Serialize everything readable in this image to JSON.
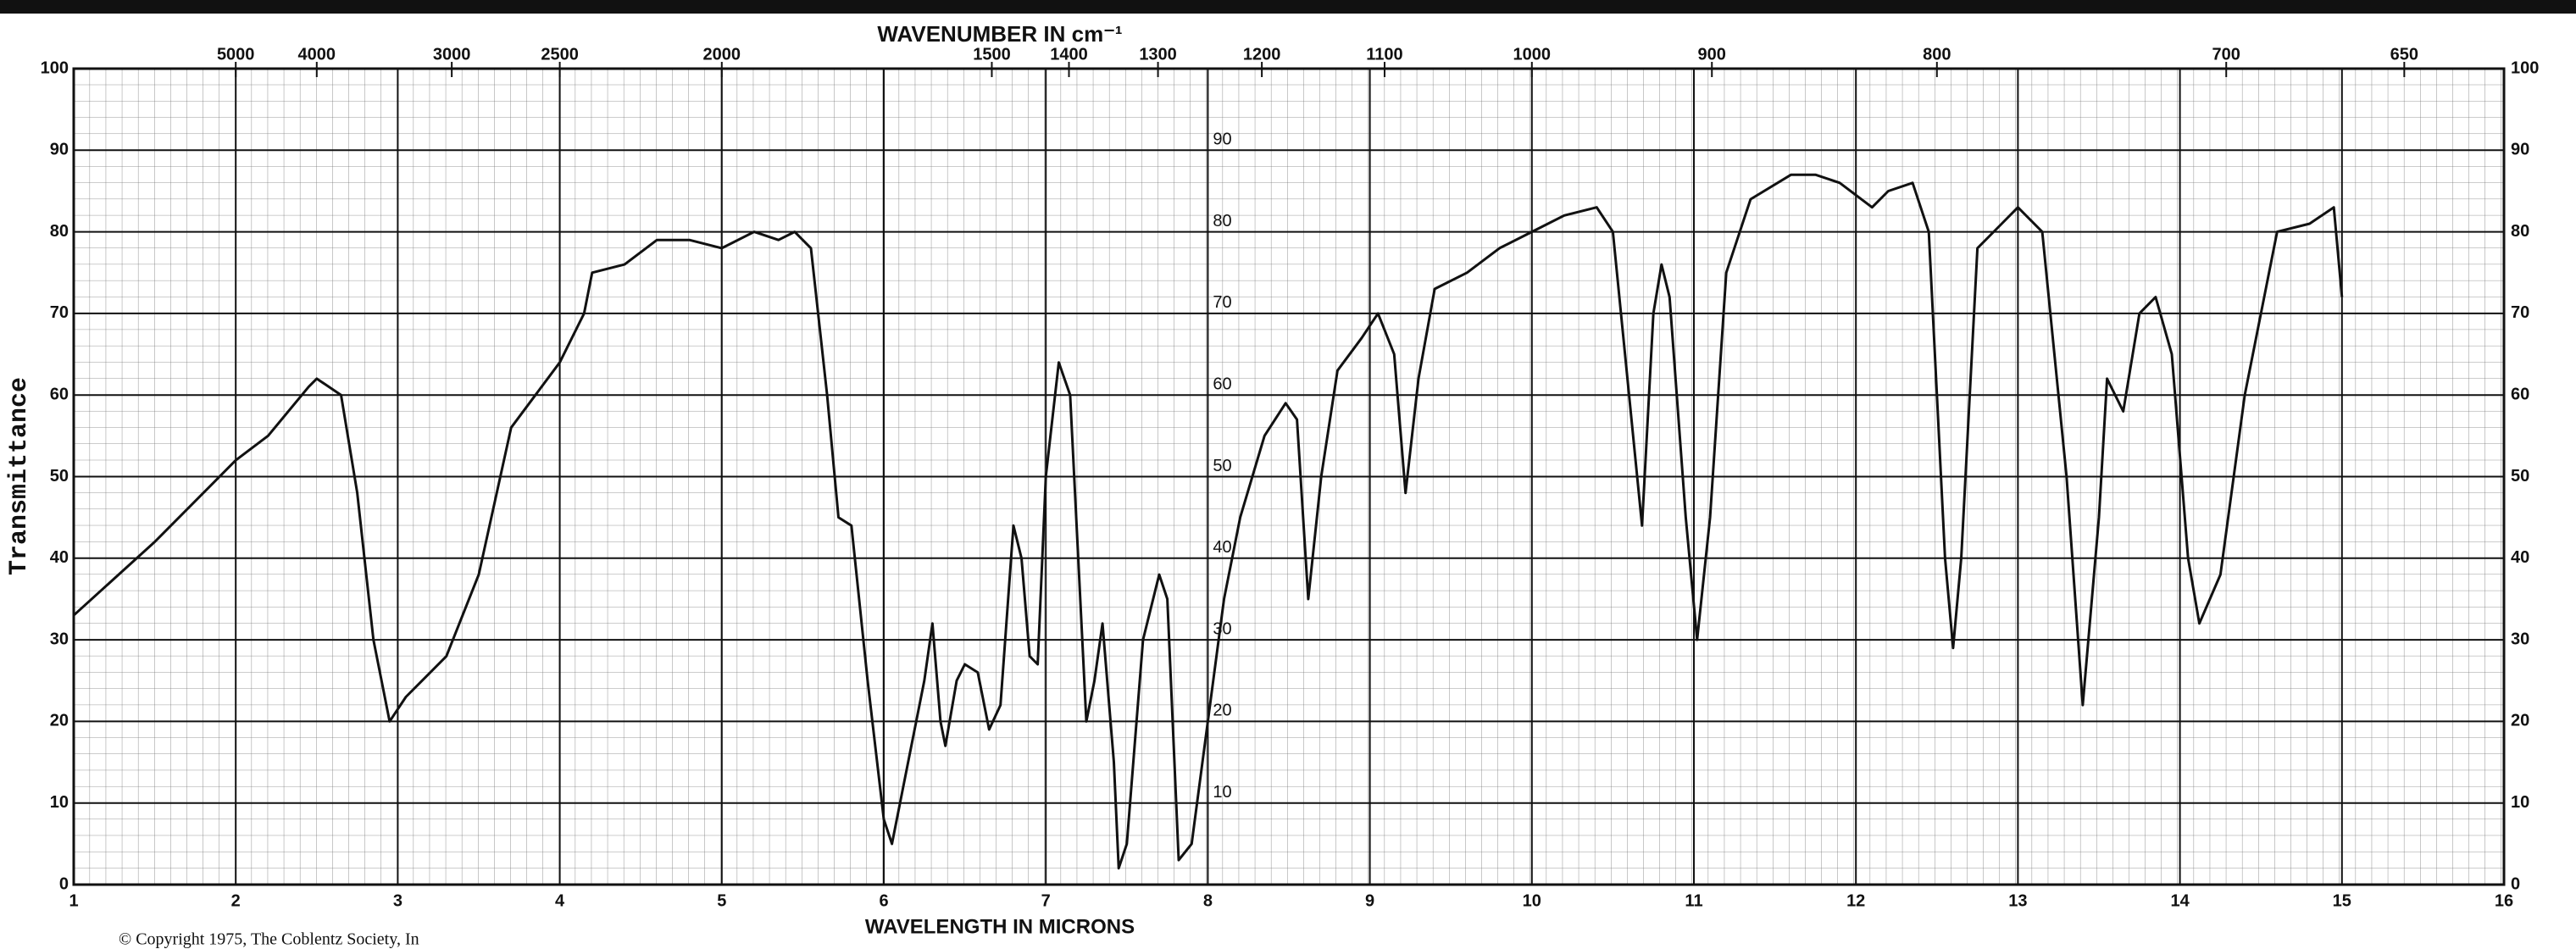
{
  "chart_data": {
    "type": "line",
    "title": "WAVENUMBER IN cm⁻¹",
    "xlabel": "WAVELENGTH IN MICRONS",
    "ylabel": "Transmittance",
    "footnote": "© Copyright 1975, The Coblentz Society, In",
    "color": "#111111",
    "grid": true,
    "xlim": [
      1,
      16
    ],
    "xticks": [
      1,
      2,
      3,
      4,
      5,
      6,
      7,
      8,
      9,
      10,
      11,
      12,
      13,
      14,
      15,
      16
    ],
    "ylim": [
      0,
      100
    ],
    "yticks": [
      0,
      10,
      20,
      30,
      40,
      50,
      60,
      70,
      80,
      90,
      100
    ],
    "x2ticks": [
      5000,
      4000,
      3000,
      2500,
      2000,
      1500,
      1400,
      1300,
      1200,
      1100,
      1000,
      900,
      800,
      700,
      650
    ],
    "x": [
      1.0,
      1.5,
      2.0,
      2.2,
      2.45,
      2.5,
      2.65,
      2.75,
      2.85,
      2.95,
      3.05,
      3.15,
      3.3,
      3.5,
      3.7,
      3.85,
      4.0,
      4.15,
      4.2,
      4.4,
      4.6,
      4.8,
      5.0,
      5.2,
      5.35,
      5.45,
      5.55,
      5.65,
      5.72,
      5.8,
      5.9,
      6.0,
      6.05,
      6.15,
      6.25,
      6.3,
      6.35,
      6.38,
      6.45,
      6.5,
      6.58,
      6.65,
      6.72,
      6.8,
      6.85,
      6.9,
      6.95,
      7.0,
      7.08,
      7.15,
      7.25,
      7.3,
      7.35,
      7.42,
      7.45,
      7.5,
      7.6,
      7.7,
      7.75,
      7.82,
      7.9,
      8.0,
      8.1,
      8.2,
      8.35,
      8.48,
      8.55,
      8.62,
      8.7,
      8.8,
      8.95,
      9.05,
      9.15,
      9.22,
      9.3,
      9.4,
      9.6,
      9.8,
      10.0,
      10.2,
      10.4,
      10.5,
      10.6,
      10.68,
      10.75,
      10.8,
      10.85,
      10.95,
      11.02,
      11.1,
      11.2,
      11.35,
      11.6,
      11.75,
      11.9,
      12.1,
      12.2,
      12.35,
      12.45,
      12.55,
      12.6,
      12.65,
      12.75,
      12.9,
      13.0,
      13.15,
      13.3,
      13.4,
      13.5,
      13.55,
      13.65,
      13.75,
      13.85,
      13.95,
      14.05,
      14.12,
      14.25,
      14.4,
      14.6,
      14.8,
      14.95,
      15.0
    ],
    "values": [
      33,
      42,
      52,
      55,
      61,
      62,
      60,
      48,
      30,
      20,
      23,
      25,
      28,
      38,
      56,
      60,
      64,
      70,
      75,
      76,
      79,
      79,
      78,
      80,
      79,
      80,
      78,
      60,
      45,
      44,
      25,
      8,
      5,
      15,
      25,
      32,
      20,
      17,
      25,
      27,
      26,
      19,
      22,
      44,
      40,
      28,
      27,
      50,
      64,
      60,
      20,
      25,
      32,
      15,
      2,
      5,
      30,
      38,
      35,
      3,
      5,
      20,
      35,
      45,
      55,
      59,
      57,
      35,
      50,
      63,
      67,
      70,
      65,
      48,
      62,
      73,
      75,
      78,
      80,
      82,
      83,
      80,
      60,
      44,
      70,
      76,
      72,
      45,
      30,
      45,
      75,
      84,
      87,
      87,
      86,
      83,
      85,
      86,
      80,
      40,
      29,
      40,
      78,
      81,
      83,
      80,
      50,
      22,
      45,
      62,
      58,
      70,
      72,
      65,
      40,
      32,
      38,
      60,
      80,
      81,
      83,
      72
    ]
  }
}
